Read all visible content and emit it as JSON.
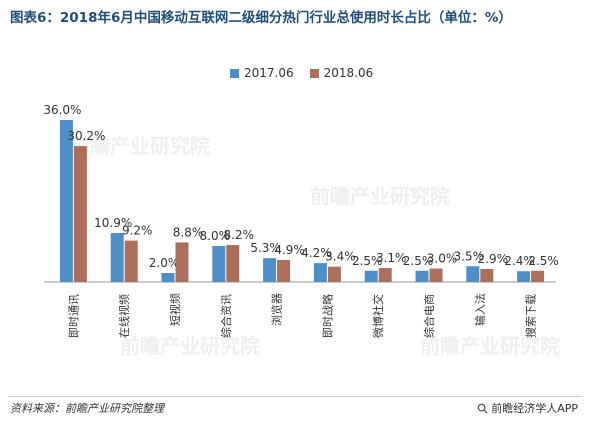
{
  "title": "图表6：2018年6月中国移动互联网二级细分热门行业总使用时长占比（单位：%）",
  "colors": {
    "series1": "#4f8fc8",
    "series2": "#ab6f5c",
    "title": "#1f4e79"
  },
  "watermark": "前瞻产业研究院",
  "footer": {
    "source": "资料来源：前瞻产业研究院整理",
    "app": "前瞻经济学人APP",
    "app_icon": "search-icon"
  },
  "chart_data": {
    "type": "bar",
    "categories": [
      "即时通讯",
      "在线视频",
      "短视频",
      "综合资讯",
      "浏览器",
      "即时战略",
      "微博社交",
      "综合电商",
      "输入法",
      "搜索下载"
    ],
    "series": [
      {
        "name": "2017.06",
        "values": [
          36.0,
          10.9,
          2.0,
          8.0,
          5.3,
          4.2,
          2.5,
          2.5,
          3.5,
          2.4
        ]
      },
      {
        "name": "2018.06",
        "values": [
          30.2,
          9.2,
          8.8,
          8.2,
          4.9,
          3.4,
          3.1,
          3.0,
          2.9,
          2.5
        ]
      }
    ],
    "value_labels": [
      [
        "36.0%",
        "10.9%",
        "2.0%",
        "8.0%",
        "5.3%",
        "4.2%",
        "2.5%",
        "2.5%",
        "3.5%",
        "2.4%"
      ],
      [
        "30.2%",
        "9.2%",
        "8.8%",
        "8.2%",
        "4.9%",
        "3.4%",
        "3.1%",
        "3.0%",
        "2.9%",
        "2.5%"
      ]
    ],
    "ylim": [
      0,
      40
    ],
    "grid": false,
    "legend_position": "top-center"
  }
}
